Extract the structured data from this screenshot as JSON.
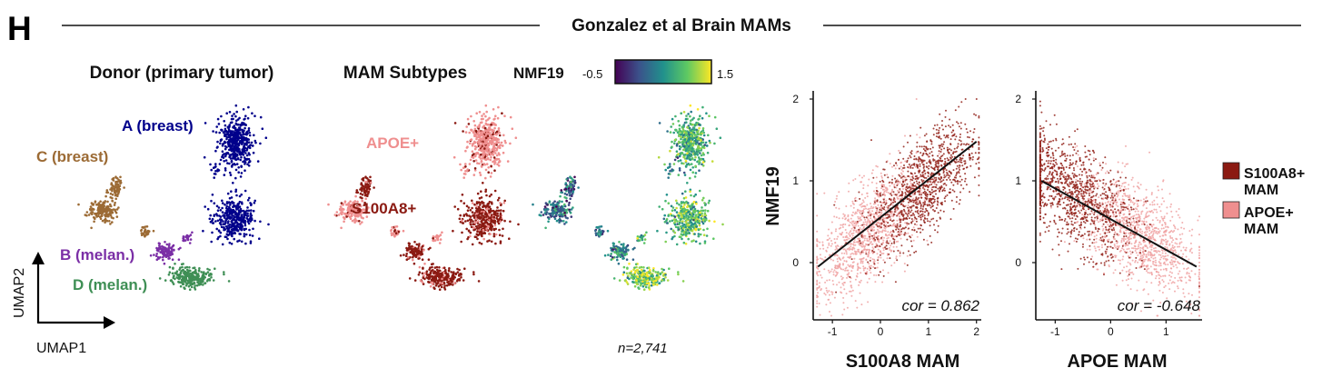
{
  "panel_letter": "H",
  "figure_title": "Gonzalez et al Brain MAMs",
  "sample_size": "n=2,741",
  "colors": {
    "donor_A": "#00008b",
    "donor_B": "#7b2fa6",
    "donor_C": "#9c6b35",
    "donor_D": "#3f8f55",
    "s100a8": "#8b1a12",
    "apoe": "#ef8f8f",
    "s100a8_scatter": "#93231b",
    "apoe_scatter": "#f0a3a3",
    "fit_line": "#111111"
  },
  "umap_donor": {
    "title": "Donor (primary tumor)",
    "labels": {
      "A": "A (breast)",
      "B": "B (melan.)",
      "C": "C (breast)",
      "D": "D (melan.)"
    },
    "axis_x": "UMAP1",
    "axis_y": "UMAP2"
  },
  "umap_subtype": {
    "title": "MAM Subtypes",
    "labels": {
      "apoe": "APOE+",
      "s100a8": "S100A8+"
    }
  },
  "umap_nmf": {
    "colorbar_label": "NMF19",
    "colorbar_min": "-0.5",
    "colorbar_max": "1.5",
    "colorbar_stops": [
      "#440154",
      "#3b528b",
      "#21918c",
      "#5ec962",
      "#fde725"
    ]
  },
  "chart_data": [
    {
      "type": "scatter",
      "title": "",
      "xlabel": "S100A8 MAM",
      "ylabel": "NMF19",
      "xlim": [
        -1.4,
        2.1
      ],
      "ylim": [
        -0.7,
        2.1
      ],
      "xticks": [
        "-1",
        "0",
        "1",
        "2"
      ],
      "yticks": [
        "0",
        "1",
        "2"
      ],
      "annotation": "cor = 0.862",
      "correlation": 0.862,
      "fit_line": {
        "x": [
          -1.3,
          2.0
        ],
        "y": [
          -0.05,
          1.48
        ]
      },
      "series": [
        {
          "name": "APOE+ MAM",
          "n_points": 1400,
          "x_center": -0.3,
          "y_center": 0.3
        },
        {
          "name": "S100A8+ MAM",
          "n_points": 1341,
          "x_center": 0.9,
          "y_center": 0.9
        }
      ]
    },
    {
      "type": "scatter",
      "title": "",
      "xlabel": "APOE MAM",
      "ylabel": "",
      "xlim": [
        -1.35,
        1.65
      ],
      "ylim": [
        -0.7,
        2.1
      ],
      "xticks": [
        "-1",
        "0",
        "1"
      ],
      "yticks": [
        "0",
        "1",
        "2"
      ],
      "annotation": "cor = -0.648",
      "correlation": -0.648,
      "fit_line": {
        "x": [
          -1.25,
          1.55
        ],
        "y": [
          1.0,
          -0.05
        ]
      },
      "series": [
        {
          "name": "APOE+ MAM",
          "n_points": 1400,
          "x_center": 0.5,
          "y_center": 0.35
        },
        {
          "name": "S100A8+ MAM",
          "n_points": 1341,
          "x_center": -0.7,
          "y_center": 0.9
        }
      ]
    }
  ],
  "legend": {
    "items": [
      {
        "line1": "S100A8+",
        "line2": "MAM"
      },
      {
        "line1": "APOE+",
        "line2": "MAM"
      }
    ]
  }
}
